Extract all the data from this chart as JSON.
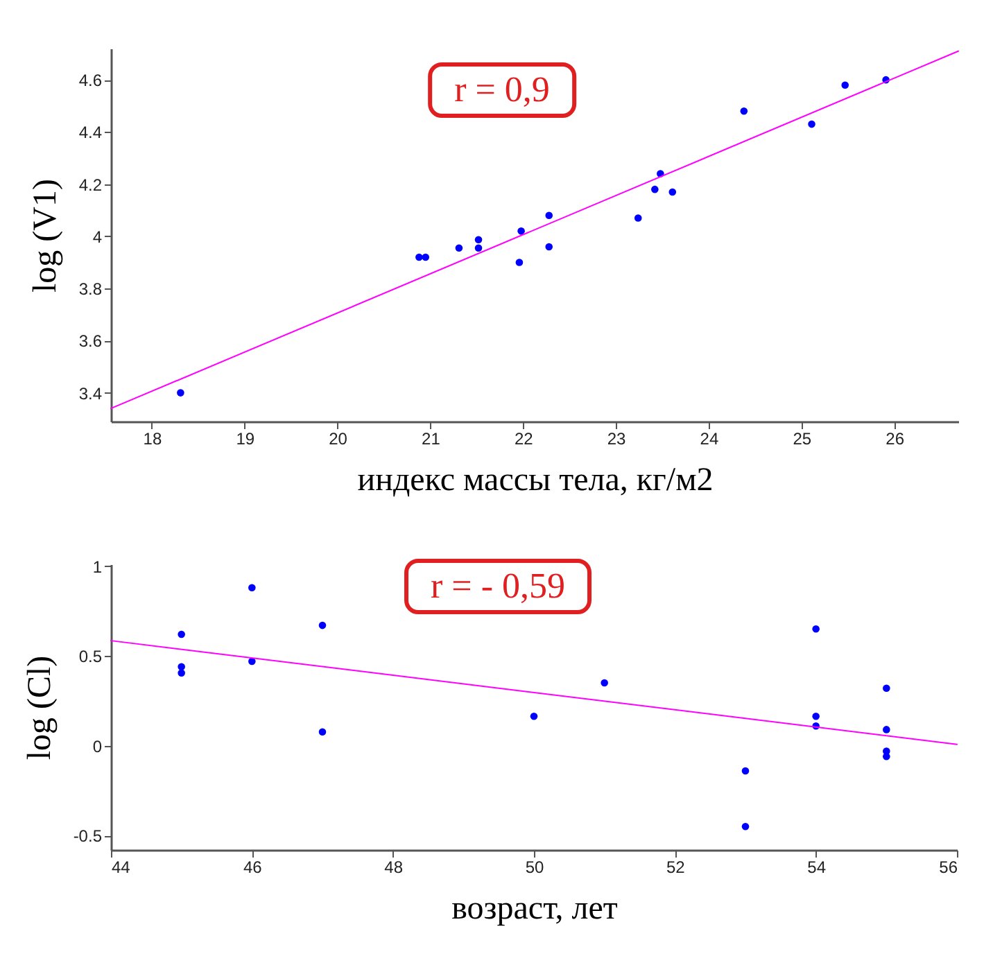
{
  "chart_data": [
    {
      "type": "scatter",
      "xlabel": "индекс массы тела, кг/м2",
      "ylabel": "log (V1)",
      "annotations": [
        "r = 0,9"
      ],
      "xlim": [
        17.56,
        26.69
      ],
      "ylim": [
        3.29,
        4.72
      ],
      "xticks": [
        18,
        19,
        20,
        21,
        22,
        23,
        24,
        25,
        26
      ],
      "yticks": [
        3.4,
        3.6,
        3.8,
        4,
        4.2,
        4.4,
        4.6
      ],
      "series": [
        {
          "marker": "circle",
          "color": "#0000ff",
          "x": [
            18.31,
            20.88,
            20.95,
            21.31,
            21.52,
            21.52,
            21.96,
            21.98,
            22.28,
            22.28,
            23.24,
            23.42,
            23.48,
            23.61,
            24.38,
            25.11,
            25.47,
            25.91
          ],
          "values": [
            3.4,
            3.92,
            3.92,
            3.955,
            3.987,
            3.955,
            3.9,
            4.02,
            4.08,
            3.96,
            4.07,
            4.18,
            4.24,
            4.17,
            4.48,
            4.43,
            4.58,
            4.6
          ]
        },
        {
          "type": "line",
          "color": "#ff00ff",
          "x": [
            17.56,
            26.69
          ],
          "values": [
            3.34,
            4.71
          ]
        }
      ]
    },
    {
      "type": "scatter",
      "xlabel": "возраст, лет",
      "ylabel": "log (Cl)",
      "annotations": [
        "r = - 0,59"
      ],
      "xlim": [
        44,
        56
      ],
      "ylim": [
        -0.58,
        1.01
      ],
      "xticks": [
        44,
        46,
        48,
        50,
        52,
        54,
        56
      ],
      "yticks": [
        -0.5,
        0,
        0.5,
        1
      ],
      "series": [
        {
          "marker": "circle",
          "color": "#0000ff",
          "x": [
            45,
            45,
            45,
            46,
            46,
            47,
            47,
            50,
            51,
            53,
            53,
            54,
            54,
            54,
            55,
            55,
            55,
            55
          ],
          "values": [
            0.62,
            0.44,
            0.405,
            0.88,
            0.47,
            0.67,
            0.077,
            0.164,
            0.35,
            -0.14,
            -0.45,
            0.65,
            0.164,
            0.11,
            0.32,
            0.09,
            -0.03,
            -0.06
          ]
        },
        {
          "type": "line",
          "color": "#ff00ff",
          "x": [
            44,
            56
          ],
          "values": [
            0.585,
            0.008
          ]
        }
      ]
    }
  ]
}
